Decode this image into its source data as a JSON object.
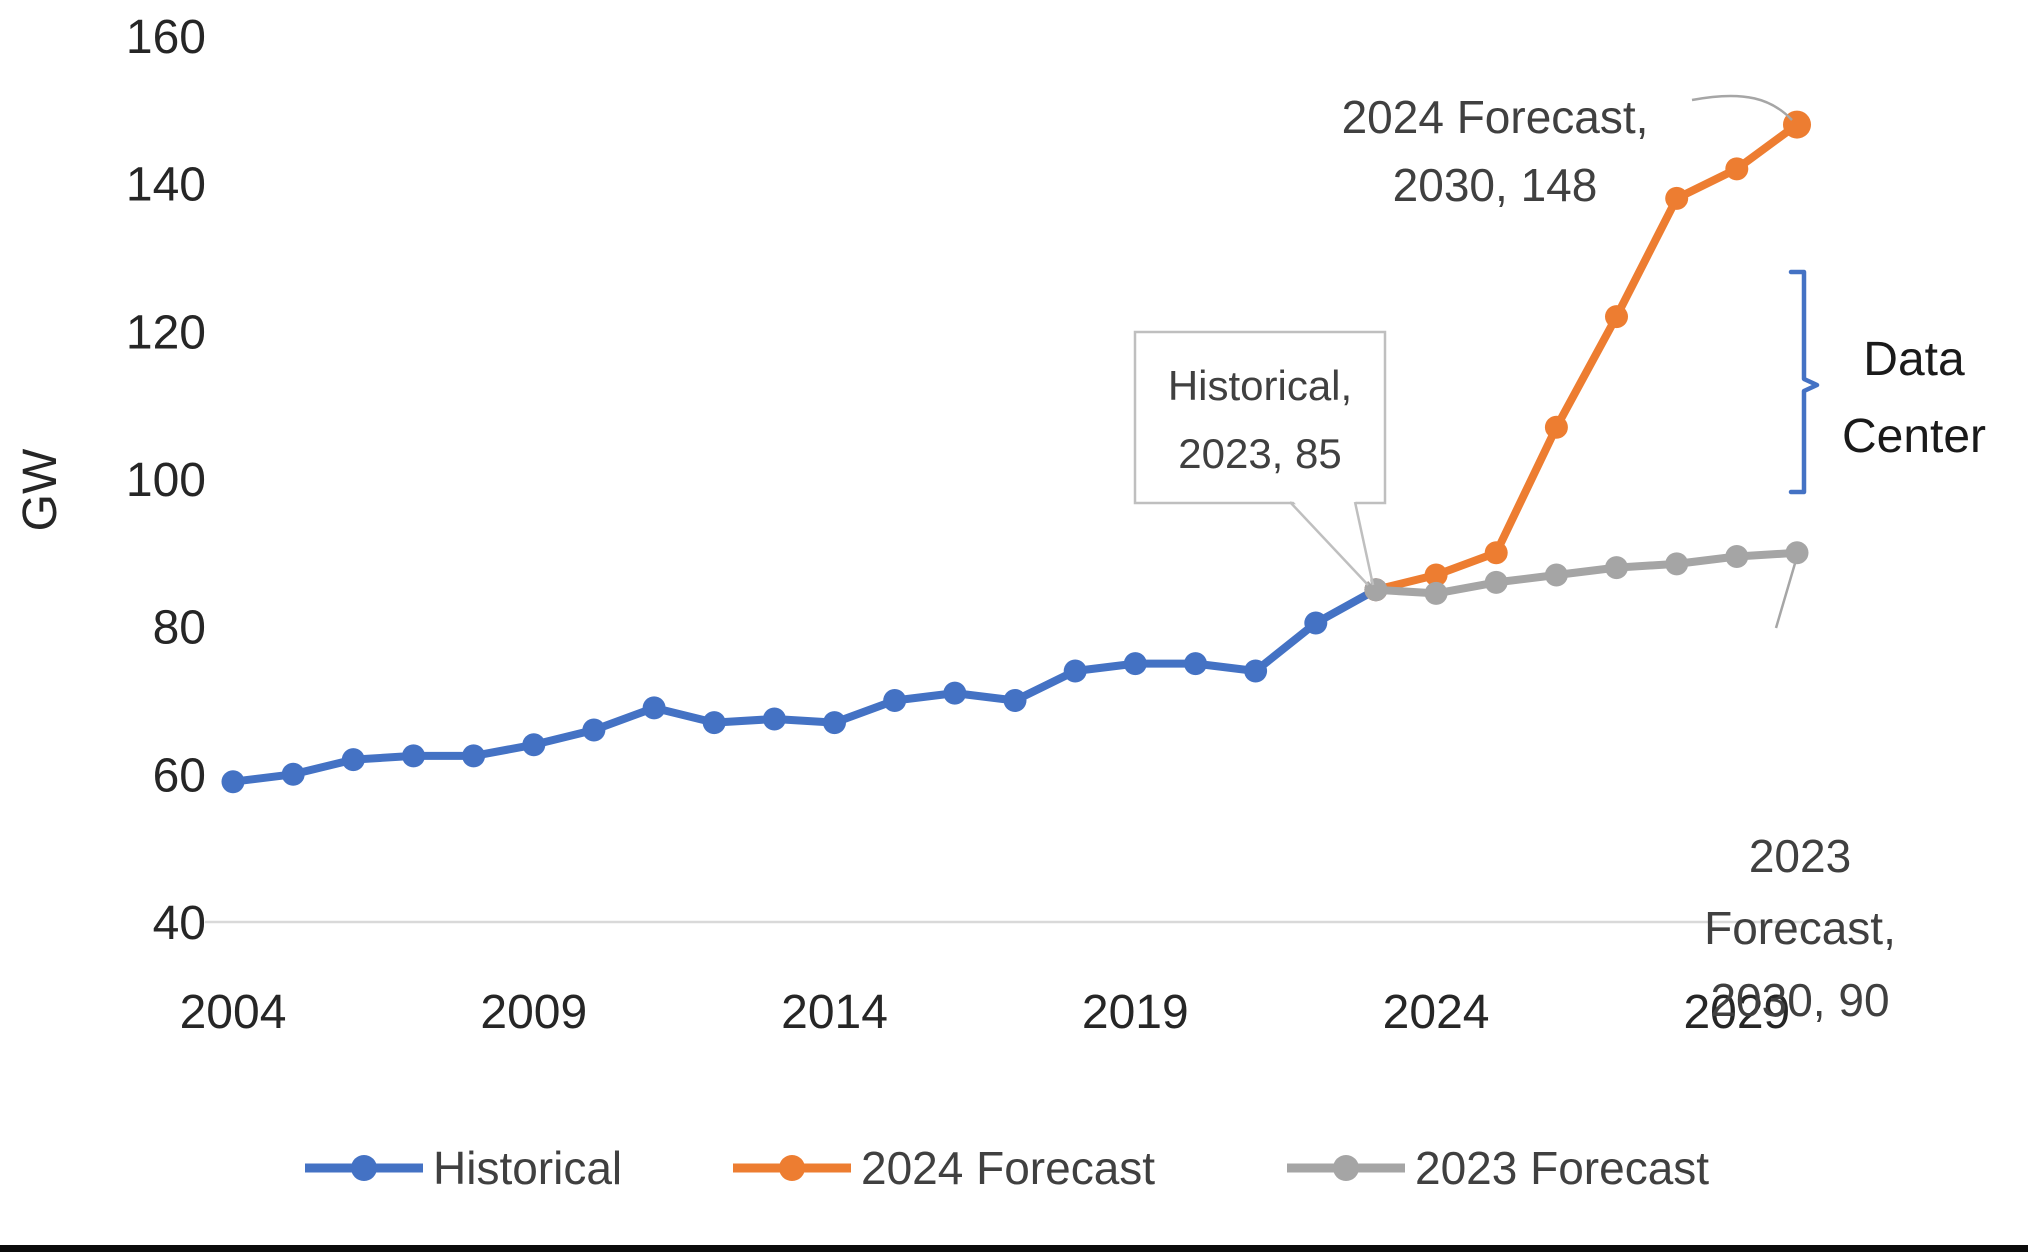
{
  "chart_data": {
    "type": "line",
    "title": "",
    "xlabel": "",
    "ylabel": "GW",
    "unit": "GW",
    "ylim": [
      40,
      160
    ],
    "xlim": [
      2004,
      2030
    ],
    "yticks": [
      "160",
      "140",
      "120",
      "100",
      "80",
      "60",
      "40"
    ],
    "ytick_values": [
      160,
      140,
      120,
      100,
      80,
      60,
      40
    ],
    "xticks": [
      "2004",
      "2009",
      "2014",
      "2019",
      "2024",
      "2029"
    ],
    "xtick_values": [
      2004,
      2009,
      2014,
      2019,
      2024,
      2029
    ],
    "grid": false,
    "legend_position": "bottom",
    "axis_line_color": "#d9d9d9",
    "series": [
      {
        "name": "Historical",
        "color": "#4472C4",
        "x": [
          2004,
          2005,
          2006,
          2007,
          2008,
          2009,
          2010,
          2011,
          2012,
          2013,
          2014,
          2015,
          2016,
          2017,
          2018,
          2019,
          2020,
          2021,
          2022,
          2023
        ],
        "values": [
          59,
          60,
          62,
          62.5,
          62.5,
          64,
          66,
          69,
          67,
          67.5,
          67,
          70,
          71,
          70,
          74,
          75,
          75,
          74,
          80.5,
          85
        ]
      },
      {
        "name": "2024 Forecast",
        "color": "#ED7D31",
        "x": [
          2023,
          2024,
          2025,
          2026,
          2027,
          2028,
          2029,
          2030
        ],
        "values": [
          85,
          87,
          90,
          107,
          122,
          138,
          142,
          148
        ]
      },
      {
        "name": "2023 Forecast",
        "color": "#A5A5A5",
        "x": [
          2023,
          2024,
          2025,
          2026,
          2027,
          2028,
          2029,
          2030
        ],
        "values": [
          85,
          84.5,
          86,
          87,
          88,
          88.5,
          89.5,
          90
        ]
      }
    ],
    "annotations": [
      {
        "id": "forecast-2024-endpoint",
        "lines": [
          "2024 Forecast,",
          "2030,  148"
        ]
      },
      {
        "id": "historical-callout",
        "lines": [
          "Historical,",
          "2023, 85"
        ]
      },
      {
        "id": "forecast-2023-endpoint",
        "lines": [
          "2023",
          "Forecast,",
          "2030,  90"
        ]
      },
      {
        "id": "data-center-bracket",
        "lines": [
          "Data",
          "Center"
        ],
        "bracket_color": "#4472C4"
      }
    ]
  },
  "legend": {
    "items": [
      {
        "label": "Historical",
        "color": "#4472C4"
      },
      {
        "label": "2024 Forecast",
        "color": "#ED7D31"
      },
      {
        "label": "2023 Forecast",
        "color": "#A5A5A5"
      }
    ]
  }
}
